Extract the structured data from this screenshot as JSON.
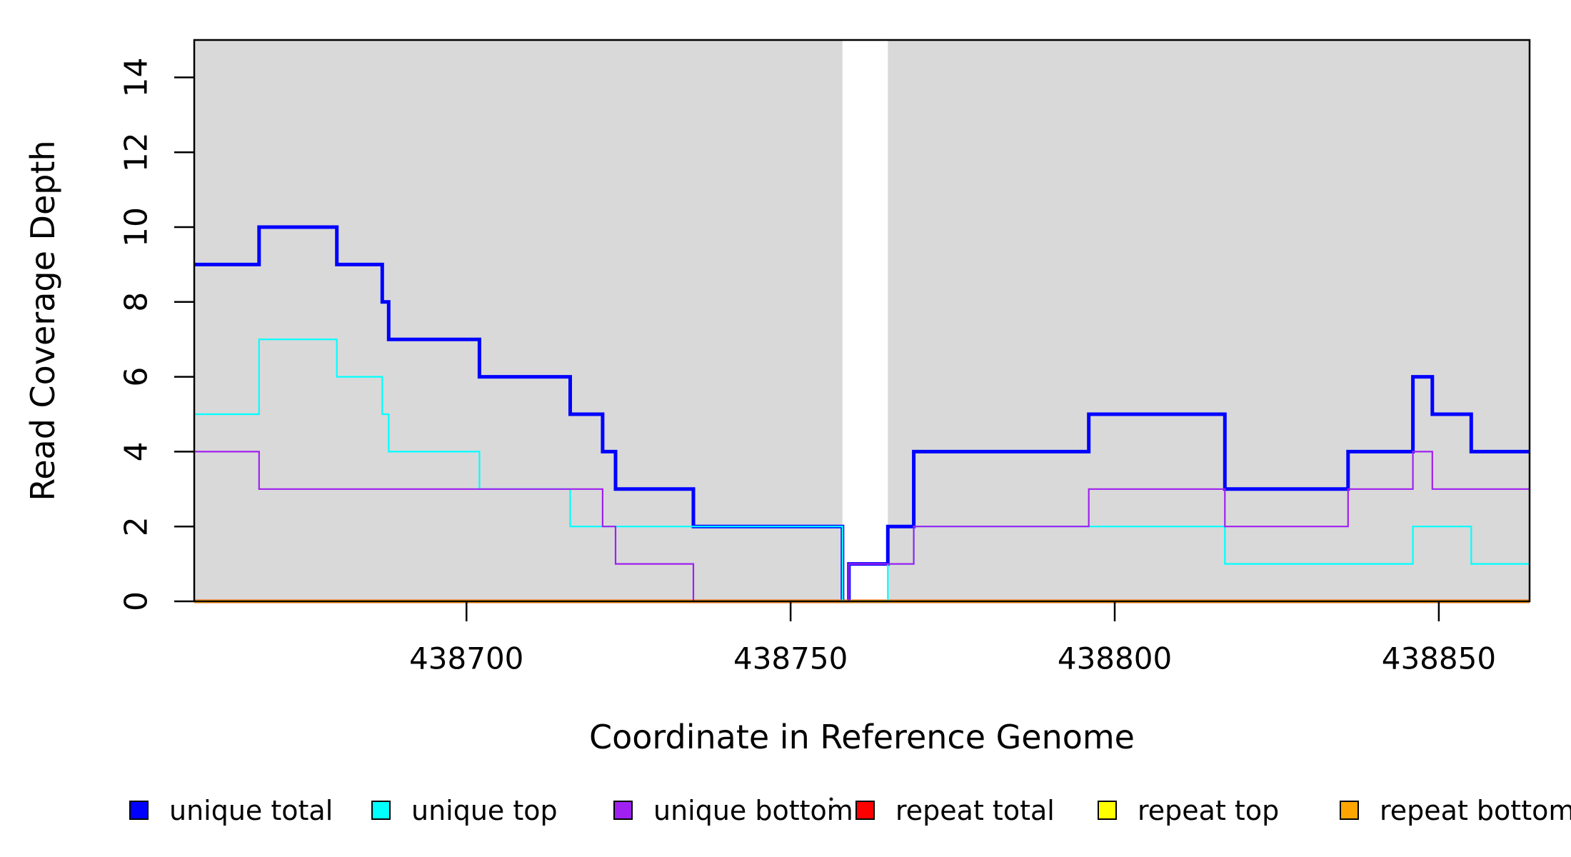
{
  "chart_data": {
    "type": "step",
    "title": "",
    "xlabel": "Coordinate in Reference Genome",
    "ylabel": "Read Coverage Depth",
    "xlim": [
      438658,
      438864
    ],
    "ylim": [
      0,
      15
    ],
    "x_ticks": [
      {
        "value": 438700,
        "label": "438700"
      },
      {
        "value": 438750,
        "label": "438750"
      },
      {
        "value": 438800,
        "label": "438800"
      },
      {
        "value": 438850,
        "label": "438850"
      }
    ],
    "y_ticks": [
      {
        "value": 0,
        "label": "0"
      },
      {
        "value": 2,
        "label": "2"
      },
      {
        "value": 4,
        "label": "4"
      },
      {
        "value": 6,
        "label": "6"
      },
      {
        "value": 8,
        "label": "8"
      },
      {
        "value": 10,
        "label": "10"
      },
      {
        "value": 12,
        "label": "12"
      },
      {
        "value": 14,
        "label": "14"
      }
    ],
    "background_shading": {
      "color": "#D9D9D9",
      "regions": [
        [
          438658,
          438758
        ],
        [
          438765,
          438864
        ]
      ],
      "white_gap": [
        438758,
        438765
      ]
    },
    "border_color": "#000000",
    "series": [
      {
        "name": "unique total",
        "color": "#0000FF",
        "line_width": 5,
        "points": [
          [
            438658,
            9
          ],
          [
            438668,
            10
          ],
          [
            438680,
            9
          ],
          [
            438687,
            8
          ],
          [
            438688,
            7
          ],
          [
            438702,
            6
          ],
          [
            438716,
            5
          ],
          [
            438721,
            4
          ],
          [
            438723,
            3
          ],
          [
            438735,
            2
          ],
          [
            438758,
            0
          ],
          [
            438759,
            1
          ],
          [
            438765,
            2
          ],
          [
            438769,
            4
          ],
          [
            438796,
            5
          ],
          [
            438817,
            3
          ],
          [
            438836,
            4
          ],
          [
            438846,
            6
          ],
          [
            438849,
            5
          ],
          [
            438855,
            4
          ]
        ]
      },
      {
        "name": "repeat total",
        "color": "#FF0000",
        "line_width": 5,
        "points": [
          [
            438658,
            0
          ]
        ]
      },
      {
        "name": "repeat top",
        "color": "#FFFF00",
        "line_width": 2.5,
        "points": [
          [
            438658,
            0
          ]
        ]
      },
      {
        "name": "repeat bottom",
        "color": "#FFA500",
        "line_width": 4.5,
        "points": [
          [
            438658,
            0
          ]
        ]
      },
      {
        "name": "unique top",
        "color": "#00FFFF",
        "line_width": 2.2,
        "points": [
          [
            438658,
            5
          ],
          [
            438668,
            7
          ],
          [
            438680,
            6
          ],
          [
            438687,
            5
          ],
          [
            438688,
            4
          ],
          [
            438702,
            3
          ],
          [
            438716,
            2
          ],
          [
            438758,
            0
          ],
          [
            438765,
            1
          ],
          [
            438769,
            2
          ],
          [
            438817,
            1
          ],
          [
            438846,
            2
          ],
          [
            438855,
            1
          ]
        ]
      },
      {
        "name": "unique bottom",
        "color": "#A020F0",
        "line_width": 2.2,
        "points": [
          [
            438658,
            4
          ],
          [
            438668,
            3
          ],
          [
            438721,
            2
          ],
          [
            438723,
            1
          ],
          [
            438735,
            0
          ],
          [
            438759,
            1
          ],
          [
            438769,
            2
          ],
          [
            438796,
            3
          ],
          [
            438817,
            2
          ],
          [
            438836,
            3
          ],
          [
            438846,
            4
          ],
          [
            438849,
            3
          ]
        ]
      }
    ],
    "legend": {
      "entries": [
        {
          "label": "unique total",
          "color": "#0000FF"
        },
        {
          "label": "unique top",
          "color": "#00FFFF"
        },
        {
          "label": "unique bottom",
          "color": "#A020F0"
        },
        {
          "label": "repeat total",
          "color": "#FF0000"
        },
        {
          "label": "repeat top",
          "color": "#FFFF00"
        },
        {
          "label": "repeat bottom",
          "color": "#FFA500"
        }
      ],
      "stray_mark": "·"
    }
  }
}
